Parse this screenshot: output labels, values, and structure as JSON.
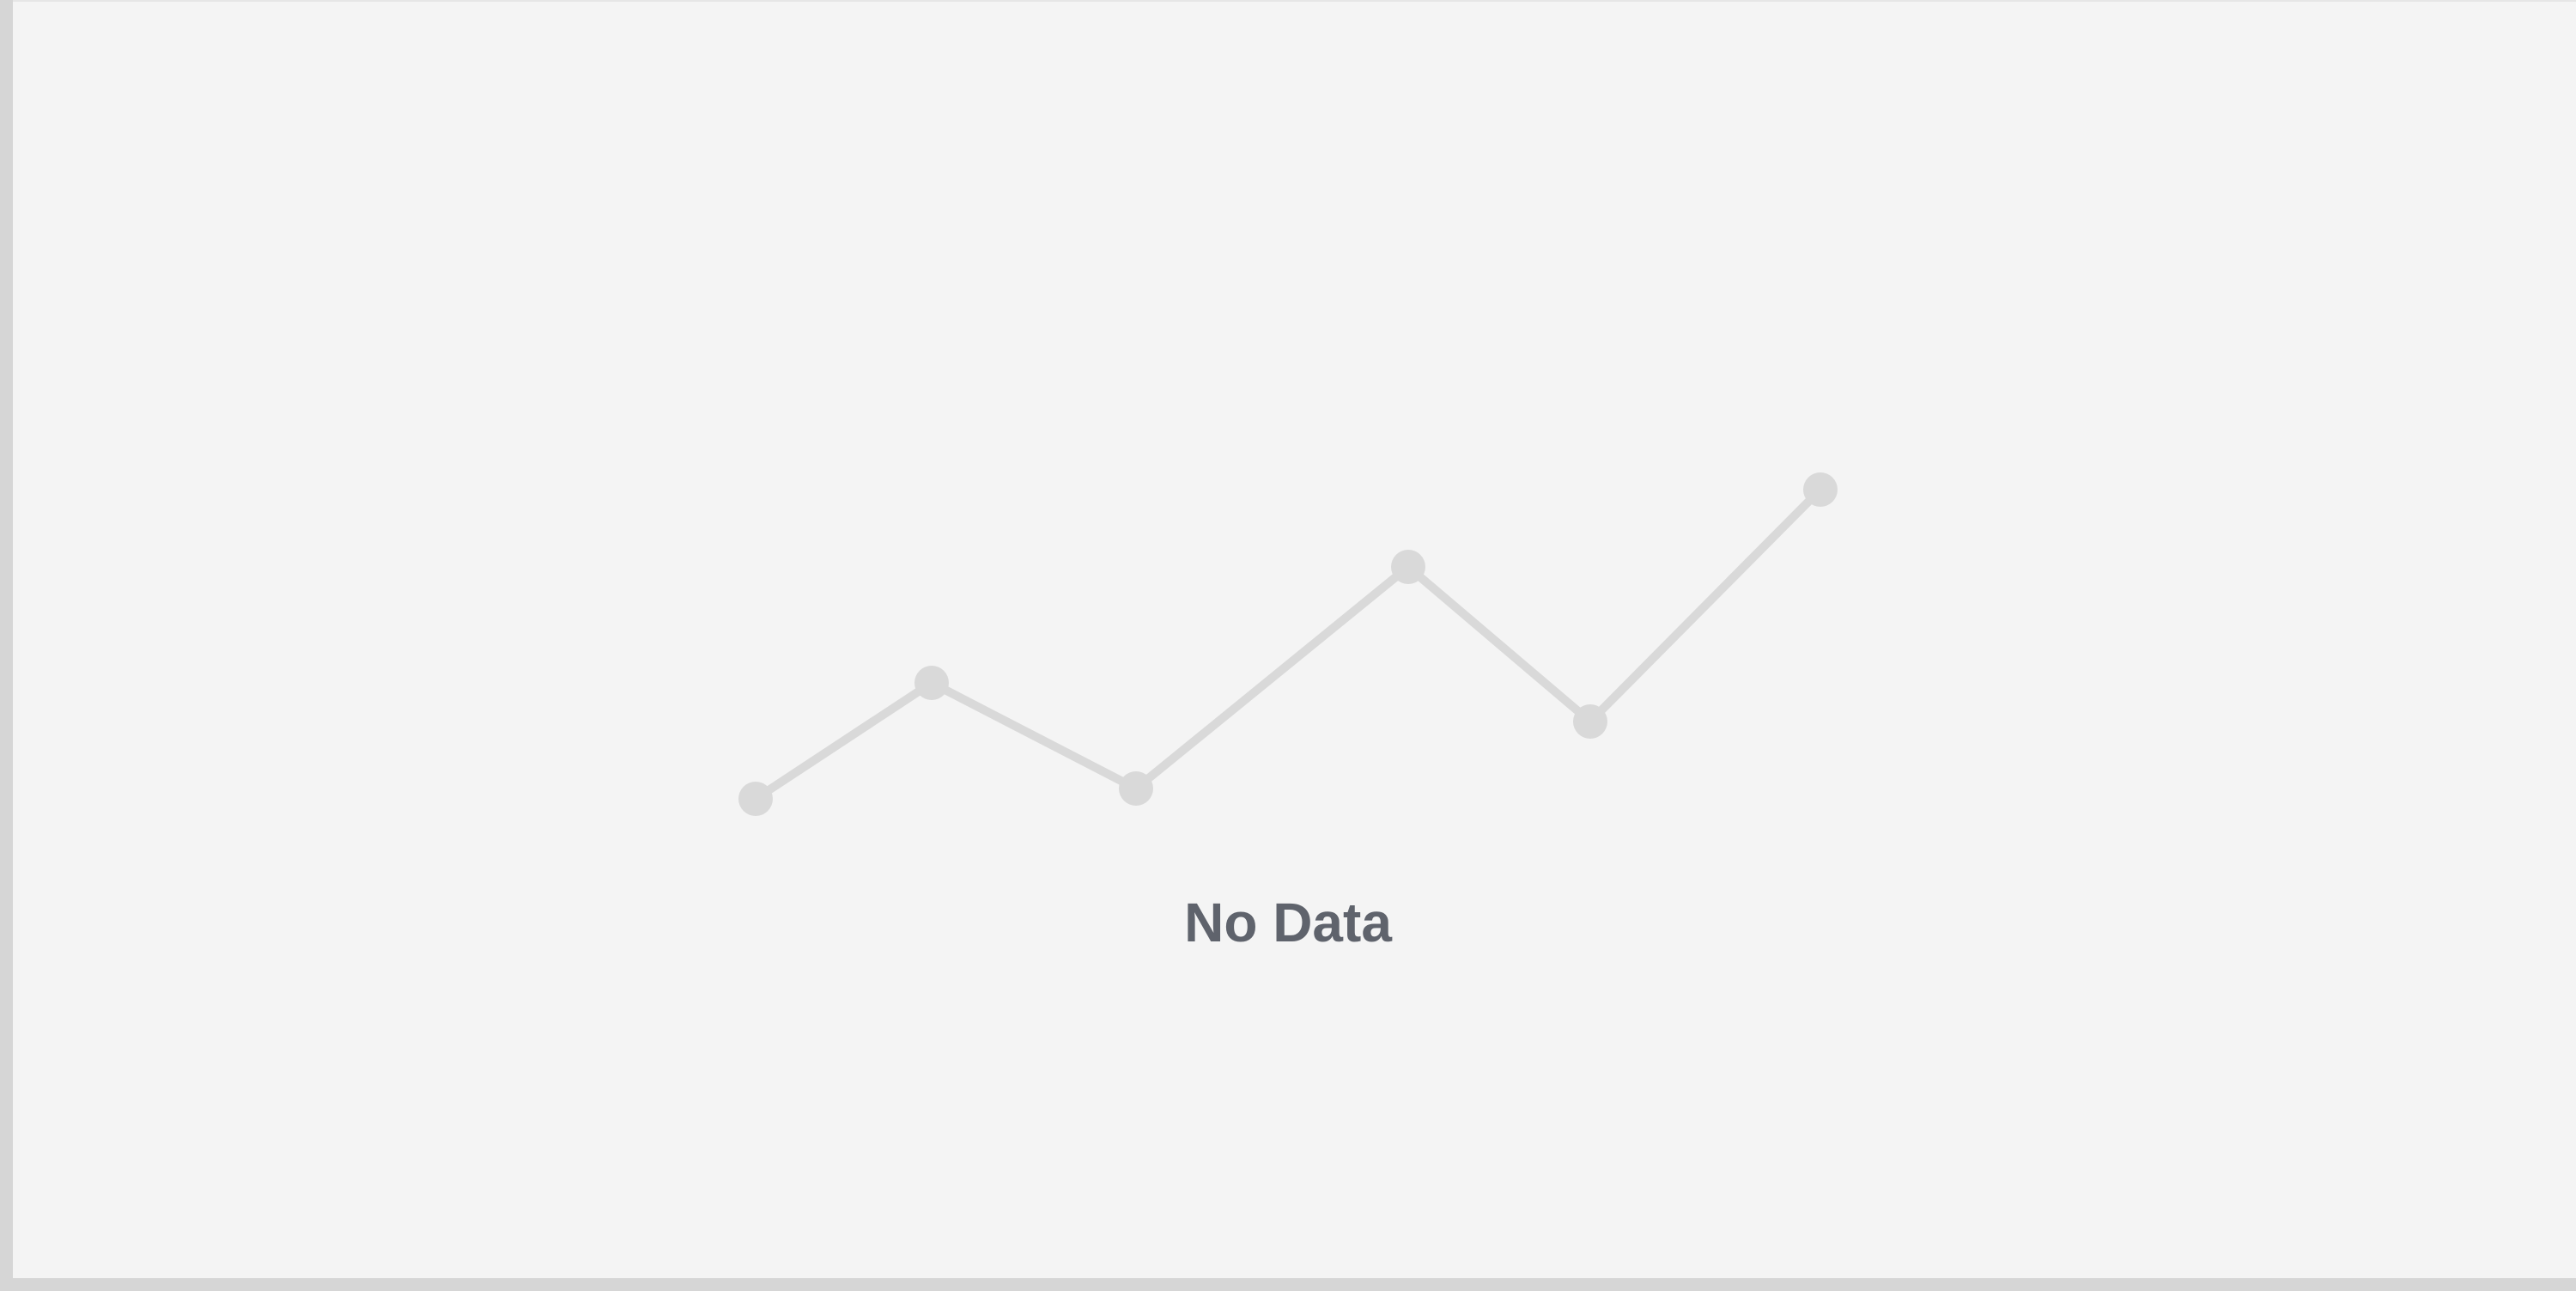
{
  "empty_state": {
    "message": "No Data",
    "icon": "line-chart-placeholder-icon",
    "placeholder_trend": [
      0,
      0.45,
      0.04,
      0.9,
      0.3,
      1.2
    ],
    "colors": {
      "background": "#f4f4f4",
      "border": "#d6d6d6",
      "placeholder_line": "#d9d9d9",
      "placeholder_point": "#d9d9d9",
      "message_text": "#5f636c"
    }
  }
}
